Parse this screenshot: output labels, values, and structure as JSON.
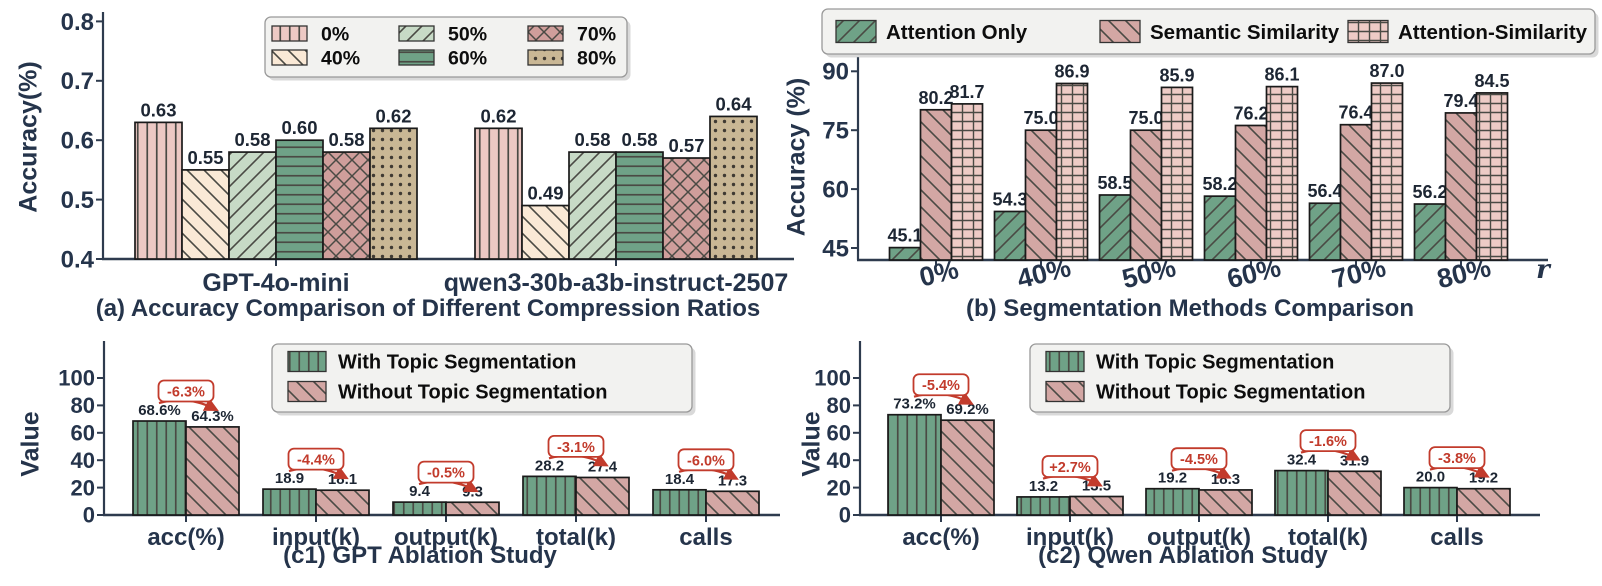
{
  "figure": {
    "background": "#ffffff"
  },
  "colors": {
    "text": "#25344b",
    "value_label": "#1d2633",
    "legend_text": "#0d0d0d",
    "annotation_red": "#c23b2c",
    "hatch_line": "#4a4a44",
    "bar_edge": "#1a1a1a",
    "legend_bg": "#f2f2f0",
    "legend_border": "#999999",
    "spine": "#2e3b4e"
  },
  "chart_data": [
    {
      "id": "a",
      "type": "bar",
      "title": "(a) Accuracy Comparison of Different Compression Ratios",
      "ylabel": "Accuracy(%)",
      "ylim": [
        0.4,
        0.8
      ],
      "yticks": [
        "0.4",
        "0.5",
        "0.6",
        "0.7",
        "0.8"
      ],
      "ytick_values": [
        0.4,
        0.5,
        0.6,
        0.7,
        0.8
      ],
      "grid": false,
      "legend_position": "upper center inside",
      "categories": [
        "GPT-4o-mini",
        "qwen3-30b-a3b-instruct-2507"
      ],
      "series": [
        {
          "name": "0%",
          "color": "#edc9c4",
          "hatch": "vlines",
          "values": [
            0.63,
            0.62
          ],
          "labels": [
            "0.63",
            "0.62"
          ]
        },
        {
          "name": "40%",
          "color": "#fae9d6",
          "hatch": "bslash",
          "values": [
            0.55,
            0.49
          ],
          "labels": [
            "0.55",
            "0.49"
          ]
        },
        {
          "name": "50%",
          "color": "#c7dac6",
          "hatch": "fslash",
          "values": [
            0.58,
            0.58
          ],
          "labels": [
            "0.58",
            "0.58"
          ]
        },
        {
          "name": "60%",
          "color": "#6fa287",
          "hatch": "hlines",
          "values": [
            0.6,
            0.58
          ],
          "labels": [
            "0.60",
            "0.58"
          ]
        },
        {
          "name": "70%",
          "color": "#cf9e9b",
          "hatch": "cross",
          "values": [
            0.58,
            0.57
          ],
          "labels": [
            "0.58",
            "0.57"
          ]
        },
        {
          "name": "80%",
          "color": "#c9b795",
          "hatch": "dots",
          "values": [
            0.62,
            0.64
          ],
          "labels": [
            "0.62",
            "0.64"
          ]
        }
      ]
    },
    {
      "id": "b",
      "type": "bar",
      "title": "(b) Segmentation Methods Comparison",
      "ylabel": "Accuracy (%)",
      "xlabel_right": "r",
      "ylim": [
        42,
        93
      ],
      "yticks": [
        "45",
        "60",
        "75",
        "90"
      ],
      "ytick_values": [
        45,
        60,
        75,
        90
      ],
      "grid": false,
      "legend_position": "top row",
      "categories": [
        "0%",
        "40%",
        "50%",
        "60%",
        "70%",
        "80%"
      ],
      "series": [
        {
          "name": "Attention Only",
          "color": "#6fa287",
          "hatch": "fslash",
          "values": [
            45.1,
            54.3,
            58.5,
            58.2,
            56.4,
            56.2
          ],
          "labels": [
            "45.1",
            "54.3",
            "58.5",
            "58.2",
            "56.4",
            "56.2"
          ]
        },
        {
          "name": "Semantic Similarity",
          "color": "#d3a7a4",
          "hatch": "bslash",
          "values": [
            80.2,
            75.0,
            75.0,
            76.2,
            76.4,
            79.4
          ],
          "labels": [
            "80.2",
            "75.0",
            "75.0",
            "76.2",
            "76.4",
            "79.4"
          ]
        },
        {
          "name": "Attention-Similarity",
          "color": "#eecbc6",
          "hatch": "grid",
          "values": [
            81.7,
            86.9,
            85.9,
            86.1,
            87.0,
            84.5
          ],
          "labels": [
            "81.7",
            "86.9",
            "85.9",
            "86.1",
            "87.0",
            "84.5"
          ]
        }
      ]
    },
    {
      "id": "c1",
      "type": "bar",
      "title": "(c1) GPT Ablation Study",
      "ylabel": "Value",
      "ylim": [
        0,
        110
      ],
      "yticks": [
        "0",
        "20",
        "40",
        "60",
        "80",
        "100"
      ],
      "ytick_values": [
        0,
        20,
        40,
        60,
        80,
        100
      ],
      "grid": false,
      "legend_position": "upper right inside",
      "categories": [
        "acc(%)",
        "input(k)",
        "output(k)",
        "total(k)",
        "calls"
      ],
      "series": [
        {
          "name": "With Topic Segmentation",
          "color": "#6fa287",
          "hatch": "vlines",
          "values": [
            68.6,
            18.9,
            9.4,
            28.2,
            18.4
          ],
          "labels": [
            "68.6%",
            "18.9",
            "9.4",
            "28.2",
            "18.4"
          ]
        },
        {
          "name": "Without Topic Segmentation",
          "color": "#d3a7a4",
          "hatch": "bslash",
          "values": [
            64.3,
            18.1,
            9.3,
            27.4,
            17.3
          ],
          "labels": [
            "64.3%",
            "18.1",
            "9.3",
            "27.4",
            "17.3"
          ]
        }
      ],
      "annotations": [
        "-6.3%",
        "-4.4%",
        "-0.5%",
        "-3.1%",
        "-6.0%"
      ]
    },
    {
      "id": "c2",
      "type": "bar",
      "title": "(c2) Qwen Ablation Study",
      "ylabel": "Value",
      "ylim": [
        0,
        110
      ],
      "yticks": [
        "0",
        "20",
        "40",
        "60",
        "80",
        "100"
      ],
      "ytick_values": [
        0,
        20,
        40,
        60,
        80,
        100
      ],
      "grid": false,
      "legend_position": "upper right inside",
      "categories": [
        "acc(%)",
        "input(k)",
        "output(k)",
        "total(k)",
        "calls"
      ],
      "series": [
        {
          "name": "With Topic Segmentation",
          "color": "#6fa287",
          "hatch": "vlines",
          "values": [
            73.2,
            13.2,
            19.2,
            32.4,
            20.0
          ],
          "labels": [
            "73.2%",
            "13.2",
            "19.2",
            "32.4",
            "20.0"
          ]
        },
        {
          "name": "Without Topic Segmentation",
          "color": "#d3a7a4",
          "hatch": "bslash",
          "values": [
            69.2,
            13.5,
            18.3,
            31.9,
            19.2
          ],
          "labels": [
            "69.2%",
            "13.5",
            "18.3",
            "31.9",
            "19.2"
          ]
        }
      ],
      "annotations": [
        "-5.4%",
        "+2.7%",
        "-4.5%",
        "-1.6%",
        "-3.8%"
      ]
    }
  ]
}
